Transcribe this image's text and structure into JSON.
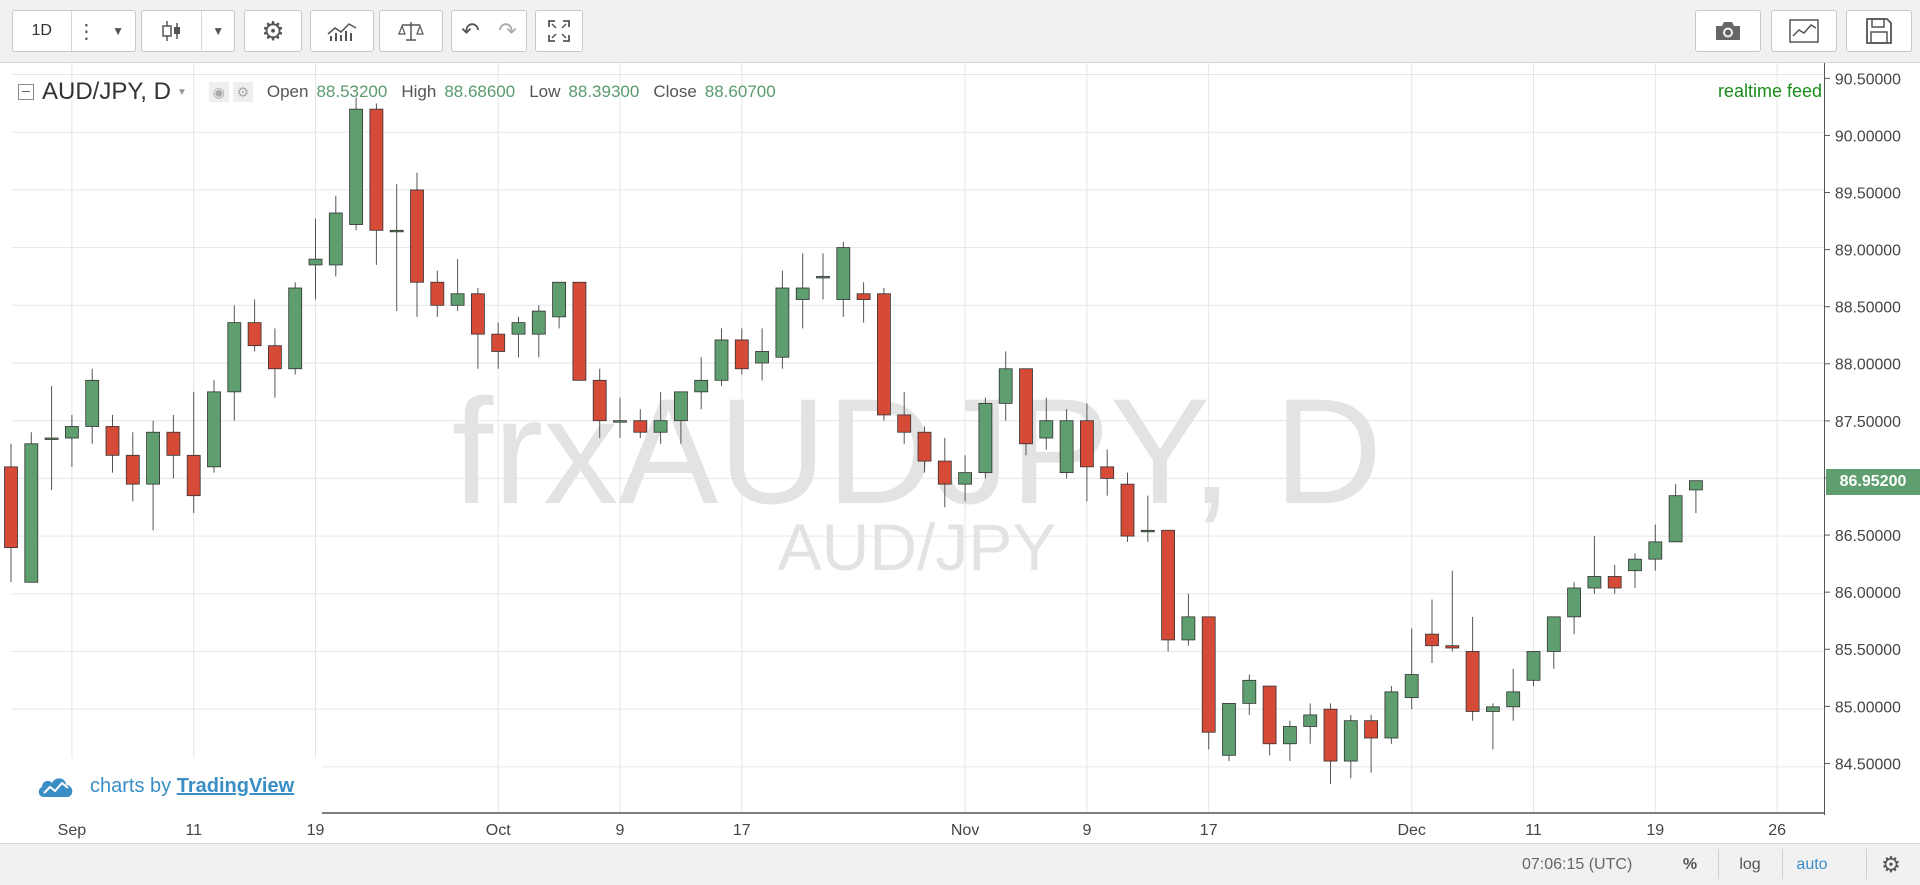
{
  "toolbar": {
    "interval": "1D",
    "icons": [
      "more-icon",
      "chevron-down-icon",
      "candles-icon",
      "chevron-down-icon",
      "gear-icon",
      "indicators-icon",
      "compare-icon",
      "undo-icon",
      "redo-icon",
      "fullscreen-icon",
      "camera-icon",
      "chart-properties-icon",
      "save-icon"
    ]
  },
  "legend": {
    "symbol": "AUD/JPY, D",
    "open_label": "Open",
    "open": "88.53200",
    "high_label": "High",
    "high": "88.68600",
    "low_label": "Low",
    "low": "88.39300",
    "close_label": "Close",
    "close": "88.60700"
  },
  "realtime": "realtime feed",
  "watermark": {
    "line1": "frxAUDJPY, D",
    "line2": "AUD/JPY"
  },
  "branding": {
    "prefix": "charts by",
    "brand": "TradingView"
  },
  "bottom": {
    "time": "07:06:15 (UTC)",
    "percent": "%",
    "log": "log",
    "auto": "auto"
  },
  "last_price": "86.95200",
  "colors": {
    "up": "#5e9e6f",
    "down": "#d64a38",
    "grid": "#e6e6e6",
    "axis": "#555555"
  },
  "chart_data": {
    "type": "candlestick",
    "ylim": [
      84.1,
      90.6
    ],
    "yticks": [
      84.5,
      85.0,
      85.5,
      86.0,
      86.5,
      87.0,
      87.5,
      88.0,
      88.5,
      89.0,
      89.5,
      90.0,
      90.5
    ],
    "ytick_labels": [
      "84.50000",
      "85.00000",
      "85.50000",
      "86.00000",
      "86.50000",
      "87.00000",
      "87.50000",
      "88.00000",
      "88.50000",
      "89.00000",
      "89.50000",
      "90.00000",
      "90.50000"
    ],
    "xticks": [
      {
        "label": "Sep",
        "index": 3
      },
      {
        "label": "11",
        "index": 9
      },
      {
        "label": "19",
        "index": 15
      },
      {
        "label": "Oct",
        "index": 24
      },
      {
        "label": "9",
        "index": 30
      },
      {
        "label": "17",
        "index": 36
      },
      {
        "label": "Nov",
        "index": 47
      },
      {
        "label": "9",
        "index": 53
      },
      {
        "label": "17",
        "index": 59
      },
      {
        "label": "Dec",
        "index": 69
      },
      {
        "label": "11",
        "index": 75
      },
      {
        "label": "19",
        "index": 81
      },
      {
        "label": "26",
        "index": 87
      }
    ],
    "ohlc": [
      [
        87.1,
        87.3,
        86.1,
        86.4
      ],
      [
        86.1,
        87.4,
        86.1,
        87.3
      ],
      [
        87.35,
        87.8,
        86.9,
        87.35
      ],
      [
        87.35,
        87.55,
        87.1,
        87.45
      ],
      [
        87.45,
        87.95,
        87.3,
        87.85
      ],
      [
        87.45,
        87.55,
        87.05,
        87.2
      ],
      [
        87.2,
        87.4,
        86.8,
        86.95
      ],
      [
        86.95,
        87.5,
        86.55,
        87.4
      ],
      [
        87.4,
        87.55,
        87.0,
        87.2
      ],
      [
        87.2,
        87.75,
        86.7,
        86.85
      ],
      [
        87.1,
        87.85,
        87.05,
        87.75
      ],
      [
        87.75,
        88.5,
        87.5,
        88.35
      ],
      [
        88.35,
        88.55,
        88.1,
        88.15
      ],
      [
        88.15,
        88.3,
        87.7,
        87.95
      ],
      [
        87.95,
        88.7,
        87.9,
        88.65
      ],
      [
        88.85,
        89.25,
        88.55,
        88.9
      ],
      [
        88.85,
        89.45,
        88.75,
        89.3
      ],
      [
        89.2,
        90.3,
        89.15,
        90.2
      ],
      [
        90.2,
        90.25,
        88.85,
        89.15
      ],
      [
        89.15,
        89.55,
        88.45,
        89.15
      ],
      [
        89.5,
        89.65,
        88.4,
        88.7
      ],
      [
        88.7,
        88.8,
        88.4,
        88.5
      ],
      [
        88.5,
        88.9,
        88.45,
        88.6
      ],
      [
        88.6,
        88.65,
        87.95,
        88.25
      ],
      [
        88.25,
        88.35,
        87.95,
        88.1
      ],
      [
        88.25,
        88.4,
        88.05,
        88.35
      ],
      [
        88.25,
        88.5,
        88.05,
        88.45
      ],
      [
        88.4,
        88.7,
        88.3,
        88.7
      ],
      [
        88.7,
        88.7,
        87.85,
        87.85
      ],
      [
        87.85,
        87.95,
        87.35,
        87.5
      ],
      [
        87.5,
        87.7,
        87.35,
        87.5
      ],
      [
        87.5,
        87.6,
        87.35,
        87.4
      ],
      [
        87.4,
        87.75,
        87.3,
        87.5
      ],
      [
        87.5,
        87.75,
        87.3,
        87.75
      ],
      [
        87.75,
        88.05,
        87.6,
        87.85
      ],
      [
        87.85,
        88.3,
        87.8,
        88.2
      ],
      [
        88.2,
        88.3,
        87.9,
        87.95
      ],
      [
        88.0,
        88.3,
        87.85,
        88.1
      ],
      [
        88.05,
        88.8,
        87.95,
        88.65
      ],
      [
        88.55,
        88.95,
        88.3,
        88.65
      ],
      [
        88.75,
        88.95,
        88.55,
        88.75
      ],
      [
        88.55,
        89.05,
        88.4,
        89.0
      ],
      [
        88.6,
        88.7,
        88.35,
        88.55
      ],
      [
        88.6,
        88.65,
        87.5,
        87.55
      ],
      [
        87.55,
        87.75,
        87.3,
        87.4
      ],
      [
        87.4,
        87.45,
        87.05,
        87.15
      ],
      [
        87.15,
        87.35,
        86.75,
        86.95
      ],
      [
        86.95,
        87.2,
        86.8,
        87.05
      ],
      [
        87.05,
        87.7,
        87.0,
        87.65
      ],
      [
        87.65,
        88.1,
        87.5,
        87.95
      ],
      [
        87.95,
        87.95,
        87.2,
        87.3
      ],
      [
        87.35,
        87.7,
        87.25,
        87.5
      ],
      [
        87.05,
        87.6,
        87.0,
        87.5
      ],
      [
        87.5,
        87.65,
        86.8,
        87.1
      ],
      [
        87.1,
        87.25,
        86.85,
        87.0
      ],
      [
        86.95,
        87.05,
        86.45,
        86.5
      ],
      [
        86.55,
        86.85,
        86.45,
        86.55
      ],
      [
        86.55,
        86.55,
        85.5,
        85.6
      ],
      [
        85.6,
        86.0,
        85.55,
        85.8
      ],
      [
        85.8,
        85.8,
        84.65,
        84.8
      ],
      [
        84.6,
        85.05,
        84.55,
        85.05
      ],
      [
        85.05,
        85.3,
        84.95,
        85.25
      ],
      [
        85.2,
        85.2,
        84.6,
        84.7
      ],
      [
        84.7,
        84.9,
        84.55,
        84.85
      ],
      [
        84.85,
        85.05,
        84.7,
        84.95
      ],
      [
        85.0,
        85.05,
        84.35,
        84.55
      ],
      [
        84.55,
        84.95,
        84.4,
        84.9
      ],
      [
        84.9,
        84.95,
        84.45,
        84.75
      ],
      [
        84.75,
        85.2,
        84.7,
        85.15
      ],
      [
        85.1,
        85.7,
        85.0,
        85.3
      ],
      [
        85.65,
        85.95,
        85.4,
        85.55
      ],
      [
        85.55,
        86.2,
        85.5,
        85.53
      ],
      [
        85.5,
        85.8,
        84.9,
        84.98
      ],
      [
        84.98,
        85.05,
        84.65,
        85.02
      ],
      [
        85.02,
        85.35,
        84.9,
        85.15
      ],
      [
        85.25,
        85.5,
        85.2,
        85.5
      ],
      [
        85.5,
        85.8,
        85.35,
        85.8
      ],
      [
        85.8,
        86.1,
        85.65,
        86.05
      ],
      [
        86.05,
        86.5,
        86.0,
        86.15
      ],
      [
        86.15,
        86.25,
        86.0,
        86.05
      ],
      [
        86.2,
        86.35,
        86.05,
        86.3
      ],
      [
        86.3,
        86.6,
        86.2,
        86.45
      ],
      [
        86.45,
        86.95,
        86.45,
        86.85
      ],
      [
        86.9,
        86.98,
        86.7,
        86.98
      ]
    ]
  }
}
